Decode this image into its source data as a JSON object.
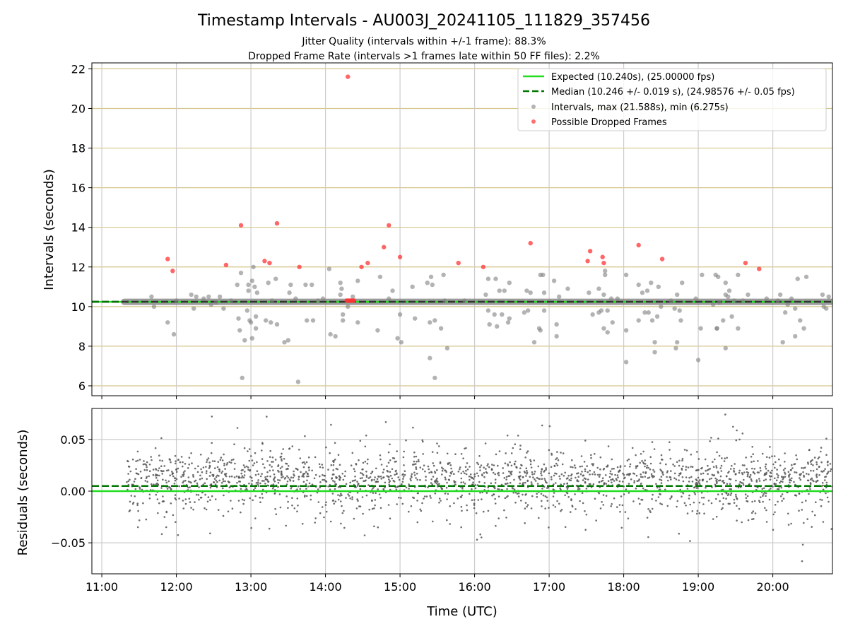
{
  "figure": {
    "title": "Timestamp Intervals - AU003J_20241105_111829_357456",
    "subtitle_1": "Jitter Quality (intervals within +/-1 frame): 88.3%",
    "subtitle_2": "Dropped Frame Rate (intervals >1 frames late within 50 FF files): 2.2%"
  },
  "colors": {
    "expected": "#22dd22",
    "median": "#007700",
    "intervals": "#808080",
    "dropped": "#ff3333",
    "hgrid": "#d4c58a",
    "vgrid": "#cccccc"
  },
  "chart_data": [
    {
      "type": "scatter",
      "ylabel": "Intervals (seconds)",
      "xlim": [
        "10:52",
        "20:48"
      ],
      "ylim": [
        5.5,
        22.3
      ],
      "x_ticks": [
        "11:00",
        "12:00",
        "13:00",
        "14:00",
        "15:00",
        "16:00",
        "17:00",
        "18:00",
        "19:00",
        "20:00"
      ],
      "y_ticks": [
        "6",
        "8",
        "10",
        "12",
        "14",
        "16",
        "18",
        "20",
        "22"
      ],
      "horizontal_grid": true,
      "vertical_grid": true,
      "legend_position": "top-right",
      "legend": {
        "expected": "Expected (10.240s), (25.00000 fps)",
        "median": "Median (10.246 +/- 0.019 s), (24.98576 +/- 0.05 fps)",
        "intervals": "Intervals, max (21.588s), min (6.275s)",
        "dropped": "Possible Dropped Frames"
      },
      "expected": 10.24,
      "median": 10.246,
      "baseline_x_range": [
        "11:18",
        "20:48"
      ],
      "interval_outliers": [
        [
          "11:53",
          9.2
        ],
        [
          "11:58",
          8.6
        ],
        [
          "12:00",
          10.3
        ],
        [
          "11:40",
          10.5
        ],
        [
          "11:42",
          10.0
        ],
        [
          "12:12",
          10.6
        ],
        [
          "12:14",
          9.9
        ],
        [
          "12:16",
          10.5
        ],
        [
          "12:22",
          10.4
        ],
        [
          "12:26",
          10.5
        ],
        [
          "12:28",
          10.1
        ],
        [
          "12:32",
          10.2
        ],
        [
          "12:35",
          10.5
        ],
        [
          "12:38",
          9.9
        ],
        [
          "12:44",
          10.3
        ],
        [
          "12:49",
          11.1
        ],
        [
          "12:50",
          9.4
        ],
        [
          "12:51",
          8.8
        ],
        [
          "12:52",
          11.7
        ],
        [
          "12:55",
          8.3
        ],
        [
          "12:57",
          9.8
        ],
        [
          "12:58",
          10.8
        ],
        [
          "12:58",
          11.1
        ],
        [
          "12:59",
          9.3
        ],
        [
          "13:00",
          9.2
        ],
        [
          "13:01",
          11.3
        ],
        [
          "13:01",
          8.4
        ],
        [
          "13:02",
          12.0
        ],
        [
          "13:03",
          11.0
        ],
        [
          "13:04",
          9.5
        ],
        [
          "13:04",
          8.9
        ],
        [
          "13:05",
          10.7
        ],
        [
          "12:53",
          6.4
        ],
        [
          "13:12",
          9.3
        ],
        [
          "13:14",
          11.2
        ],
        [
          "13:16",
          9.2
        ],
        [
          "13:17",
          10.3
        ],
        [
          "13:20",
          11.4
        ],
        [
          "13:21",
          9.1
        ],
        [
          "13:27",
          8.2
        ],
        [
          "13:30",
          8.3
        ],
        [
          "13:31",
          10.7
        ],
        [
          "13:32",
          11.1
        ],
        [
          "13:36",
          10.4
        ],
        [
          "13:38",
          6.2
        ],
        [
          "13:44",
          11.1
        ],
        [
          "13:45",
          9.3
        ],
        [
          "13:49",
          11.1
        ],
        [
          "13:50",
          9.3
        ],
        [
          "13:54",
          10.3
        ],
        [
          "13:58",
          10.4
        ],
        [
          "14:03",
          11.9
        ],
        [
          "14:04",
          8.6
        ],
        [
          "14:08",
          8.5
        ],
        [
          "14:12",
          10.6
        ],
        [
          "14:12",
          11.2
        ],
        [
          "14:13",
          10.9
        ],
        [
          "14:14",
          9.3
        ],
        [
          "14:14",
          9.6
        ],
        [
          "14:18",
          10.0
        ],
        [
          "14:22",
          10.5
        ],
        [
          "14:26",
          9.2
        ],
        [
          "14:26",
          11.3
        ],
        [
          "14:42",
          8.8
        ],
        [
          "14:44",
          11.5
        ],
        [
          "14:51",
          10.4
        ],
        [
          "14:54",
          10.8
        ],
        [
          "14:58",
          8.4
        ],
        [
          "15:00",
          9.6
        ],
        [
          "15:01",
          8.2
        ],
        [
          "15:10",
          11.0
        ],
        [
          "15:12",
          9.4
        ],
        [
          "15:22",
          11.2
        ],
        [
          "15:24",
          9.2
        ],
        [
          "15:24",
          7.4
        ],
        [
          "15:25",
          11.5
        ],
        [
          "15:26",
          11.1
        ],
        [
          "15:28",
          9.3
        ],
        [
          "15:28",
          6.4
        ],
        [
          "15:33",
          8.9
        ],
        [
          "15:35",
          11.6
        ],
        [
          "15:36",
          10.3
        ],
        [
          "15:38",
          7.9
        ],
        [
          "15:52",
          10.3
        ],
        [
          "16:09",
          10.6
        ],
        [
          "16:11",
          9.8
        ],
        [
          "16:11",
          11.4
        ],
        [
          "16:12",
          9.1
        ],
        [
          "16:16",
          9.6
        ],
        [
          "16:17",
          11.4
        ],
        [
          "16:18",
          9.0
        ],
        [
          "16:20",
          10.8
        ],
        [
          "16:22",
          9.6
        ],
        [
          "16:24",
          10.8
        ],
        [
          "16:27",
          9.2
        ],
        [
          "16:28",
          9.4
        ],
        [
          "16:28",
          11.2
        ],
        [
          "16:40",
          9.7
        ],
        [
          "16:42",
          10.8
        ],
        [
          "16:43",
          9.8
        ],
        [
          "16:45",
          10.7
        ],
        [
          "16:48",
          8.2
        ],
        [
          "16:52",
          8.9
        ],
        [
          "16:53",
          8.8
        ],
        [
          "16:53",
          11.6
        ],
        [
          "16:55",
          11.6
        ],
        [
          "16:56",
          10.7
        ],
        [
          "16:56",
          9.8
        ],
        [
          "17:04",
          11.3
        ],
        [
          "17:06",
          9.1
        ],
        [
          "17:06",
          8.5
        ],
        [
          "17:08",
          10.5
        ],
        [
          "17:15",
          10.9
        ],
        [
          "17:32",
          10.7
        ],
        [
          "17:35",
          9.6
        ],
        [
          "17:40",
          10.9
        ],
        [
          "17:40",
          9.7
        ],
        [
          "17:42",
          9.8
        ],
        [
          "17:44",
          8.9
        ],
        [
          "17:44",
          10.6
        ],
        [
          "17:45",
          11.6
        ],
        [
          "17:45",
          11.8
        ],
        [
          "17:47",
          8.7
        ],
        [
          "17:47",
          9.8
        ],
        [
          "17:50",
          10.4
        ],
        [
          "17:51",
          9.2
        ],
        [
          "17:55",
          10.4
        ],
        [
          "18:02",
          11.6
        ],
        [
          "18:02",
          8.8
        ],
        [
          "18:02",
          7.2
        ],
        [
          "18:12",
          9.3
        ],
        [
          "18:12",
          11.1
        ],
        [
          "18:15",
          10.7
        ],
        [
          "18:17",
          9.7
        ],
        [
          "18:19",
          10.8
        ],
        [
          "18:20",
          9.7
        ],
        [
          "18:22",
          11.2
        ],
        [
          "18:23",
          9.3
        ],
        [
          "18:25",
          8.2
        ],
        [
          "18:25",
          7.7
        ],
        [
          "18:27",
          9.5
        ],
        [
          "18:28",
          11.0
        ],
        [
          "18:30",
          10.0
        ],
        [
          "18:38",
          10.3
        ],
        [
          "18:41",
          9.9
        ],
        [
          "18:42",
          7.9
        ],
        [
          "18:43",
          8.2
        ],
        [
          "18:43",
          10.6
        ],
        [
          "18:45",
          9.8
        ],
        [
          "18:46",
          9.3
        ],
        [
          "18:47",
          11.2
        ],
        [
          "18:58",
          10.4
        ],
        [
          "19:00",
          7.3
        ],
        [
          "19:02",
          8.9
        ],
        [
          "19:03",
          11.6
        ],
        [
          "19:12",
          10.1
        ],
        [
          "19:14",
          11.6
        ],
        [
          "19:15",
          8.9
        ],
        [
          "19:15",
          8.9
        ],
        [
          "19:16",
          11.5
        ],
        [
          "19:17",
          10.2
        ],
        [
          "19:20",
          9.3
        ],
        [
          "19:22",
          11.2
        ],
        [
          "19:22",
          10.6
        ],
        [
          "19:22",
          7.9
        ],
        [
          "19:24",
          10.5
        ],
        [
          "19:25",
          10.8
        ],
        [
          "19:27",
          9.5
        ],
        [
          "19:29",
          10.3
        ],
        [
          "19:32",
          11.6
        ],
        [
          "19:32",
          8.9
        ],
        [
          "19:36",
          10.3
        ],
        [
          "19:40",
          10.6
        ],
        [
          "19:55",
          10.4
        ],
        [
          "20:04",
          10.3
        ],
        [
          "20:06",
          10.6
        ],
        [
          "20:08",
          8.2
        ],
        [
          "20:10",
          9.7
        ],
        [
          "20:12",
          10.1
        ],
        [
          "20:15",
          10.4
        ],
        [
          "20:18",
          9.9
        ],
        [
          "20:18",
          8.5
        ],
        [
          "20:20",
          11.4
        ],
        [
          "20:22",
          9.3
        ],
        [
          "20:25",
          8.9
        ],
        [
          "20:27",
          11.5
        ],
        [
          "20:40",
          10.6
        ],
        [
          "20:41",
          10.0
        ],
        [
          "20:43",
          9.9
        ],
        [
          "20:45",
          10.5
        ]
      ],
      "dropped_frames": [
        [
          "11:53",
          12.4
        ],
        [
          "11:57",
          11.8
        ],
        [
          "12:40",
          12.1
        ],
        [
          "12:52",
          14.1
        ],
        [
          "13:11",
          12.3
        ],
        [
          "13:15",
          12.2
        ],
        [
          "13:21",
          14.2
        ],
        [
          "13:39",
          12.0
        ],
        [
          "14:18",
          21.6
        ],
        [
          "14:29",
          12.0
        ],
        [
          "14:34",
          12.2
        ],
        [
          "14:47",
          13.0
        ],
        [
          "14:51",
          14.1
        ],
        [
          "15:00",
          12.5
        ],
        [
          "15:47",
          12.2
        ],
        [
          "16:07",
          12.0
        ],
        [
          "16:45",
          13.2
        ],
        [
          "17:31",
          12.3
        ],
        [
          "17:33",
          12.8
        ],
        [
          "17:43",
          12.5
        ],
        [
          "17:44",
          12.2
        ],
        [
          "18:12",
          13.1
        ],
        [
          "18:31",
          12.4
        ],
        [
          "19:38",
          12.2
        ],
        [
          "19:49",
          11.9
        ],
        [
          "14:17",
          10.3
        ],
        [
          "14:18",
          10.3
        ],
        [
          "14:19",
          10.3
        ],
        [
          "14:20",
          10.3
        ],
        [
          "14:21",
          10.3
        ],
        [
          "14:22",
          10.3
        ],
        [
          "14:23",
          10.3
        ]
      ]
    },
    {
      "type": "scatter",
      "xlabel": "Time (UTC)",
      "ylabel": "Residuals (seconds)",
      "xlim": [
        "10:52",
        "20:48"
      ],
      "ylim": [
        -0.08,
        0.08
      ],
      "y_ticks": [
        "0.05",
        "0.00",
        "−0.05"
      ],
      "x_ticks": [
        "11:00",
        "12:00",
        "13:00",
        "14:00",
        "15:00",
        "16:00",
        "17:00",
        "18:00",
        "19:00",
        "20:00"
      ],
      "expected_residual": 0.0,
      "median_residual": 0.005,
      "residual_spread": "about 2000 points between 11:20 and 20:48, mostly within -0.03 to 0.045 s, extremes near -0.078 and 0.074 s"
    }
  ]
}
